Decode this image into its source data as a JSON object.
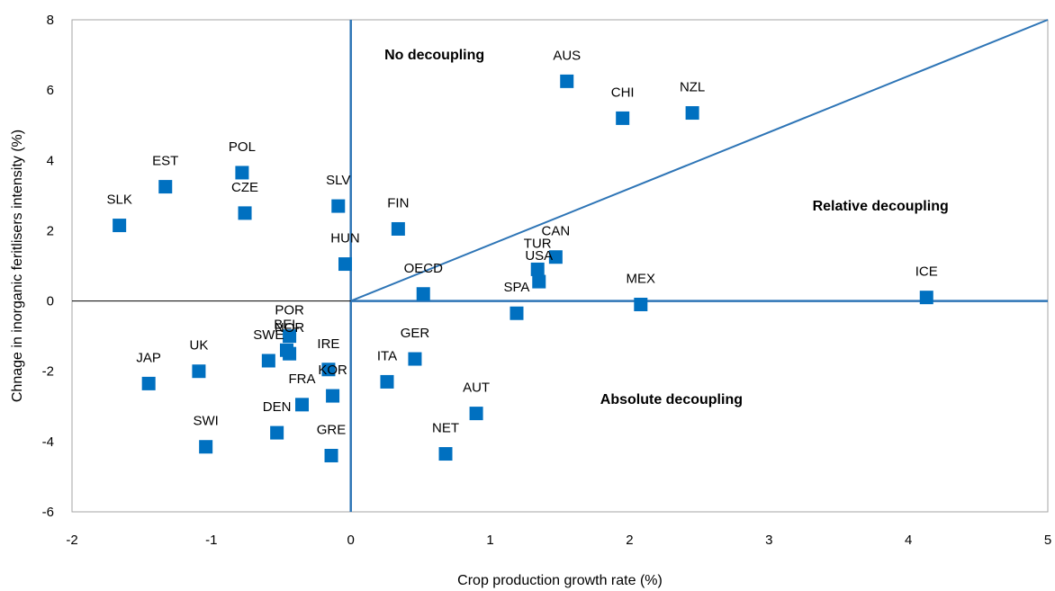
{
  "chart_data": {
    "type": "scatter",
    "xlabel": "Crop production growth rate (%)",
    "ylabel": "Chnage in inorganic feritlisers intensity (%)",
    "xlim": [
      -2,
      5
    ],
    "ylim": [
      -6,
      8
    ],
    "xticks": [
      -2,
      -1,
      0,
      1,
      2,
      3,
      4,
      5
    ],
    "yticks": [
      -6,
      -4,
      -2,
      0,
      2,
      4,
      6,
      8
    ],
    "grid": false,
    "marker_color": "#0070C0",
    "line_color": "#2E75B6",
    "reference_lines": {
      "relative_decoupling_line": {
        "from": [
          0,
          0
        ],
        "to": [
          5,
          8
        ]
      }
    },
    "regions": [
      {
        "text": "No decoupling",
        "x": 0.6,
        "y": 7.0
      },
      {
        "text": "Relative decoupling",
        "x": 3.8,
        "y": 2.7
      },
      {
        "text": "Absolute decoupling",
        "x": 2.3,
        "y": -2.8
      }
    ],
    "points": [
      {
        "label": "AUS",
        "x": 1.55,
        "y": 6.25
      },
      {
        "label": "CHI",
        "x": 1.95,
        "y": 5.2
      },
      {
        "label": "NZL",
        "x": 2.45,
        "y": 5.35
      },
      {
        "label": "POL",
        "x": -0.78,
        "y": 3.65
      },
      {
        "label": "EST",
        "x": -1.33,
        "y": 3.25
      },
      {
        "label": "CZE",
        "x": -0.76,
        "y": 2.5
      },
      {
        "label": "SLK",
        "x": -1.66,
        "y": 2.15
      },
      {
        "label": "SLV",
        "x": -0.09,
        "y": 2.7
      },
      {
        "label": "FIN",
        "x": 0.34,
        "y": 2.05
      },
      {
        "label": "HUN",
        "x": -0.04,
        "y": 1.05
      },
      {
        "label": "CAN",
        "x": 1.47,
        "y": 1.25
      },
      {
        "label": "TUR",
        "x": 1.34,
        "y": 0.9
      },
      {
        "label": "USA",
        "x": 1.35,
        "y": 0.55
      },
      {
        "label": "OECD",
        "x": 0.52,
        "y": 0.2
      },
      {
        "label": "MEX",
        "x": 2.08,
        "y": -0.1
      },
      {
        "label": "ICE",
        "x": 4.13,
        "y": 0.1
      },
      {
        "label": "SPA",
        "x": 1.19,
        "y": -0.35
      },
      {
        "label": "POR",
        "x": -0.44,
        "y": -1.0
      },
      {
        "label": "BEL",
        "x": -0.46,
        "y": -1.4
      },
      {
        "label": "NOR",
        "x": -0.44,
        "y": -1.5
      },
      {
        "label": "SWE",
        "x": -0.59,
        "y": -1.7
      },
      {
        "label": "UK",
        "x": -1.09,
        "y": -2.0
      },
      {
        "label": "JAP",
        "x": -1.45,
        "y": -2.35
      },
      {
        "label": "IRE",
        "x": -0.16,
        "y": -1.95
      },
      {
        "label": "KOR",
        "x": -0.13,
        "y": -2.7
      },
      {
        "label": "FRA",
        "x": -0.35,
        "y": -2.95
      },
      {
        "label": "ITA",
        "x": 0.26,
        "y": -2.3
      },
      {
        "label": "GER",
        "x": 0.46,
        "y": -1.65
      },
      {
        "label": "AUT",
        "x": 0.9,
        "y": -3.2
      },
      {
        "label": "DEN",
        "x": -0.53,
        "y": -3.75
      },
      {
        "label": "SWI",
        "x": -1.04,
        "y": -4.15
      },
      {
        "label": "GRE",
        "x": -0.14,
        "y": -4.4
      },
      {
        "label": "NET",
        "x": 0.68,
        "y": -4.35
      }
    ]
  }
}
